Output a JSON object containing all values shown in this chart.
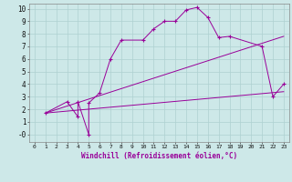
{
  "xlabel": "Windchill (Refroidissement éolien,°C)",
  "bg_color": "#cde8e8",
  "grid_color": "#aed0d0",
  "line_color": "#990099",
  "xlim": [
    -0.5,
    23.5
  ],
  "ylim": [
    -0.6,
    10.4
  ],
  "xticks": [
    0,
    1,
    2,
    3,
    4,
    5,
    6,
    7,
    8,
    9,
    10,
    11,
    12,
    13,
    14,
    15,
    16,
    17,
    18,
    19,
    20,
    21,
    22,
    23
  ],
  "yticks": [
    0,
    1,
    2,
    3,
    4,
    5,
    6,
    7,
    8,
    9,
    10
  ],
  "ytick_labels": [
    "-0",
    "1",
    "2",
    "3",
    "4",
    "5",
    "6",
    "7",
    "8",
    "9",
    "10"
  ],
  "line1_x": [
    1,
    3,
    4,
    4,
    5,
    5,
    6,
    7,
    8,
    10,
    11,
    12,
    13,
    14,
    15,
    16,
    17,
    18,
    21,
    22,
    23
  ],
  "line1_y": [
    1.7,
    2.6,
    1.4,
    2.6,
    0.0,
    2.5,
    3.3,
    6.0,
    7.5,
    7.5,
    8.4,
    9.0,
    9.0,
    9.9,
    10.1,
    9.3,
    7.7,
    7.8,
    7.0,
    3.0,
    4.0
  ],
  "line2_x": [
    1,
    23
  ],
  "line2_y": [
    1.7,
    3.4
  ],
  "line3_x": [
    1,
    23
  ],
  "line3_y": [
    1.7,
    7.8
  ],
  "marker": "+"
}
